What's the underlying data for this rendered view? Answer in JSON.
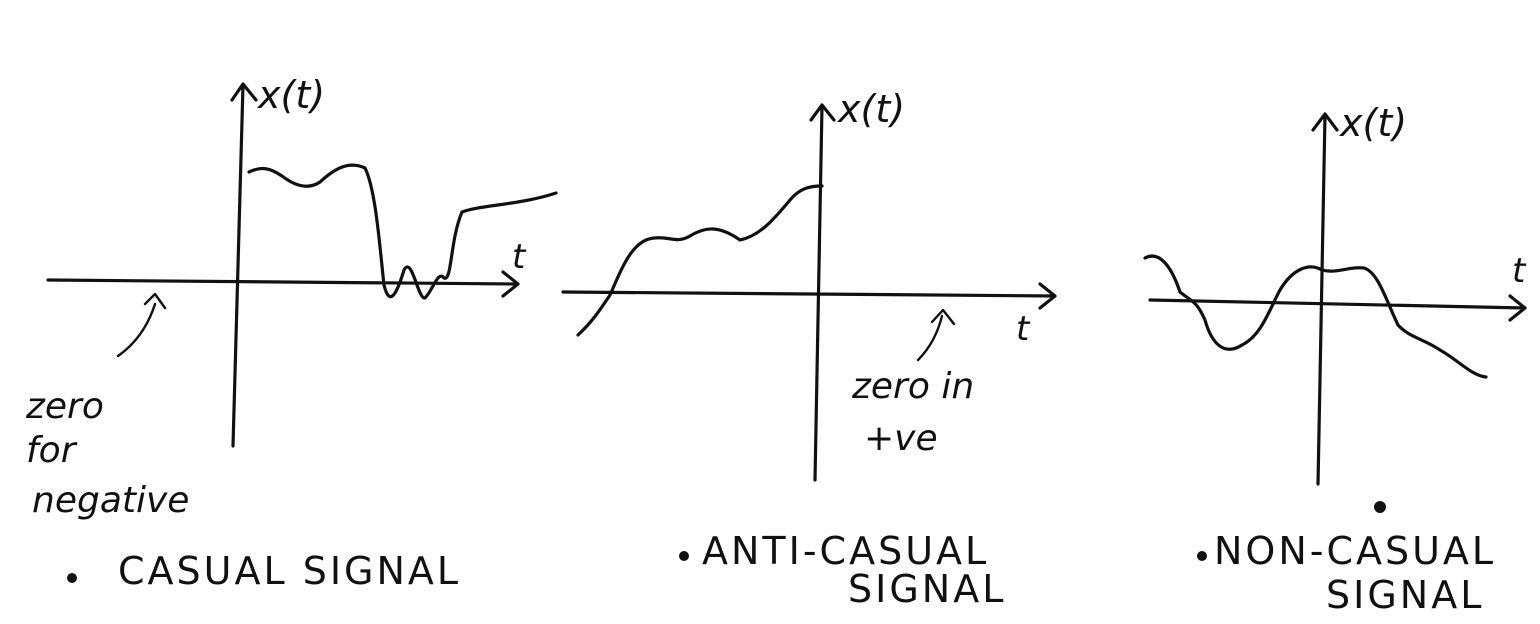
{
  "panels": [
    {
      "y_label": "x(t)",
      "x_label": "t",
      "annotation": [
        "zero",
        "for",
        "negative"
      ],
      "caption": [
        "CASUAL SIGNAL"
      ]
    },
    {
      "y_label": "x(t)",
      "x_label": "t",
      "annotation": [
        "zero in",
        "+ve"
      ],
      "caption": [
        "ANTI-CASUAL",
        "SIGNAL"
      ]
    },
    {
      "y_label": "x(t)",
      "x_label": "t",
      "annotation": [],
      "caption": [
        "NON-CASUAL",
        "SIGNAL"
      ]
    }
  ]
}
